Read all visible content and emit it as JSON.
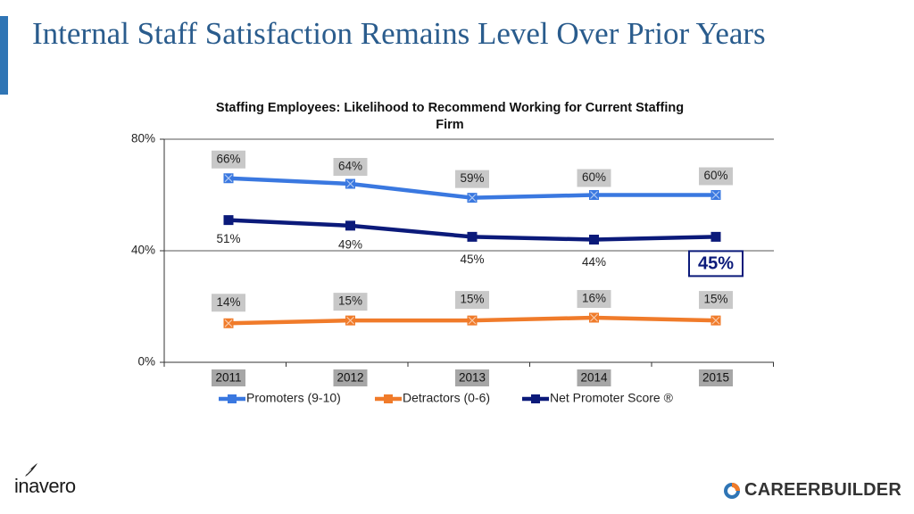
{
  "slide": {
    "title": "Internal Staff Satisfaction Remains Level Over Prior Years"
  },
  "logos": {
    "left_text": "inavero",
    "right_text": "CAREERBUILDER"
  },
  "colors": {
    "promoters": "#3a78e0",
    "detractors": "#f07b2a",
    "nps": "#0b1a7a",
    "title_text": "#2a5c8d",
    "label_bg": "#c8c8c8",
    "tick_bg": "#a6a6a6"
  },
  "chart_data": {
    "type": "line",
    "title": "Staffing Employees: Likelihood to Recommend Working for Current Staffing Firm",
    "categories": [
      "2011",
      "2012",
      "2013",
      "2014",
      "2015"
    ],
    "ylim": [
      0,
      80
    ],
    "yticks": [
      0,
      40,
      80
    ],
    "ytick_labels": [
      "0%",
      "40%",
      "80%"
    ],
    "grid": true,
    "legend_position": "bottom",
    "series": [
      {
        "name": "Promoters (9-10)",
        "values": [
          66,
          64,
          59,
          60,
          60
        ],
        "labels": [
          "66%",
          "64%",
          "59%",
          "60%",
          "60%"
        ],
        "color": "#3a78e0",
        "marker": "x",
        "label_style": "boxed"
      },
      {
        "name": "Detractors (0-6)",
        "values": [
          14,
          15,
          15,
          16,
          15
        ],
        "labels": [
          "14%",
          "15%",
          "15%",
          "16%",
          "15%"
        ],
        "color": "#f07b2a",
        "marker": "x",
        "label_style": "boxed"
      },
      {
        "name": "Net Promoter Score ®",
        "values": [
          51,
          49,
          45,
          44,
          45
        ],
        "labels": [
          "51%",
          "49%",
          "45%",
          "44%",
          "45%"
        ],
        "color": "#0b1a7a",
        "marker": "square",
        "label_style": "plain"
      }
    ],
    "callout": {
      "series": "Net Promoter Score ®",
      "category": "2015",
      "text": "45%"
    }
  }
}
